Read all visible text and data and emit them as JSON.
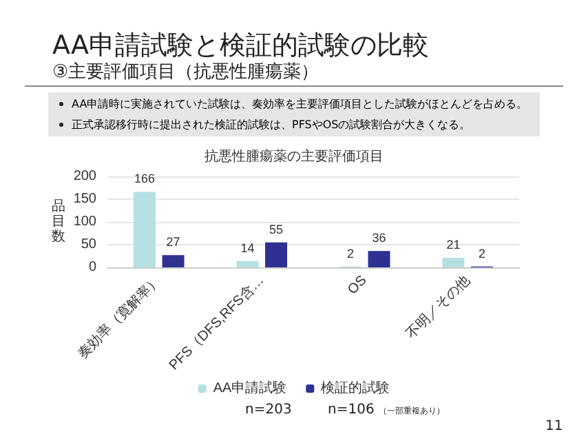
{
  "chart_data": {
    "type": "bar",
    "title": "抗悪性腫瘍薬の主要評価項目",
    "categories": [
      "奏効率（寛解率）",
      "PFS（DFS,RFS含…",
      "OS",
      "不明／その他"
    ],
    "series": [
      {
        "name": "AA申請試験",
        "color": "#b4e0e2",
        "values": [
          166,
          14,
          2,
          21
        ]
      },
      {
        "name": "検証的試験",
        "color": "#2e3192",
        "values": [
          27,
          55,
          36,
          2
        ]
      }
    ],
    "ylabel": "品目数",
    "ylim": [
      0,
      200
    ],
    "yticks": [
      0,
      50,
      100,
      150,
      200
    ],
    "grid": "y",
    "legend": "bottom",
    "data_labels": true,
    "annotations": [
      "AA申請試験と検証的試験の比較",
      "③主要評価項目（抗悪性腫瘍薬）",
      "AA申請時に実施されていた試験は、奏効率を主要評価項目とした試験がほとんどを占める。",
      "正式承認移行時に提出された検証的試験は、PFSやOSの試験割合が大きくなる。",
      "n=203",
      "n=106",
      "（一部重複あり）",
      "11"
    ]
  }
}
